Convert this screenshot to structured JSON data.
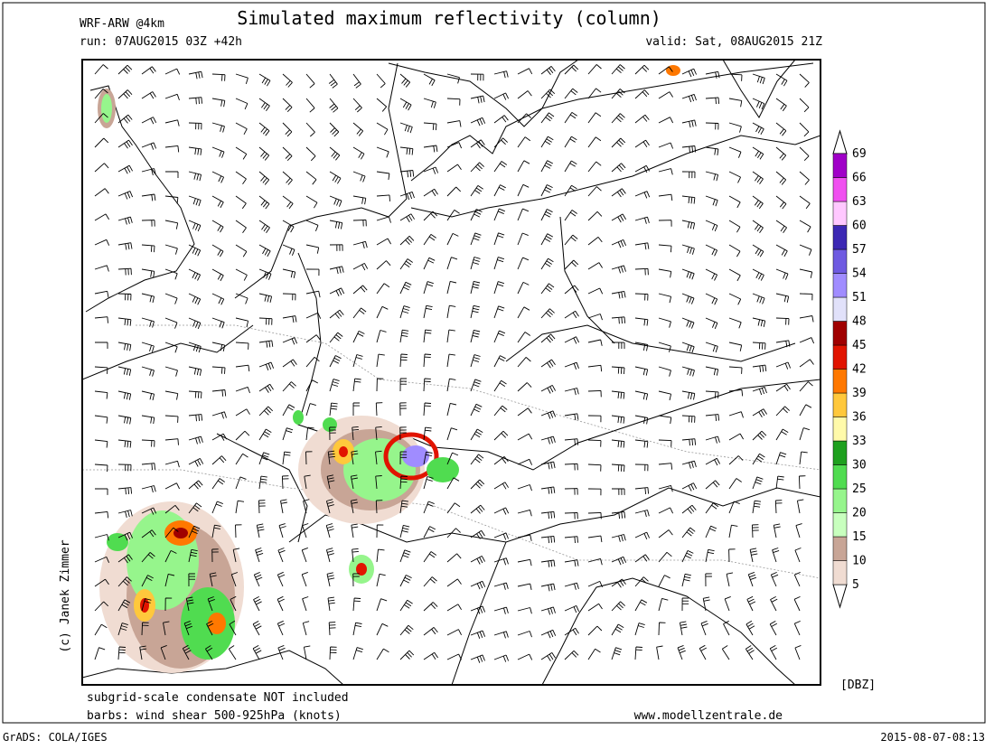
{
  "header": {
    "model": "WRF-ARW @4km",
    "title": "Simulated maximum reflectivity (column)",
    "run": "run: 07AUG2015 03Z +42h",
    "valid": "valid: Sat, 08AUG2015 21Z"
  },
  "credit": "(c) Janek Zimmer",
  "colorbar": {
    "unit": "[DBZ]",
    "levels": [
      5,
      10,
      15,
      20,
      25,
      30,
      33,
      36,
      39,
      42,
      45,
      48,
      51,
      54,
      57,
      60,
      63,
      66,
      69
    ],
    "colors": [
      "#f0dcd2",
      "#c8a596",
      "#c8ffbe",
      "#96f58c",
      "#50dc50",
      "#1ea01e",
      "#fffaaa",
      "#ffc83c",
      "#ff7800",
      "#e11400",
      "#a00000",
      "#e1e1fa",
      "#a08cff",
      "#6e5ae1",
      "#3c28b4",
      "#ffc8ff",
      "#f050f0",
      "#a000c8"
    ]
  },
  "notes": [
    "subgrid-scale condensate NOT included",
    "barbs: wind shear 500-925hPa (knots)"
  ],
  "website": "www.modellzentrale.de",
  "footer": {
    "software": "GrADS: COLA/IGES",
    "timestamp": "2015-08-07-08:13"
  }
}
